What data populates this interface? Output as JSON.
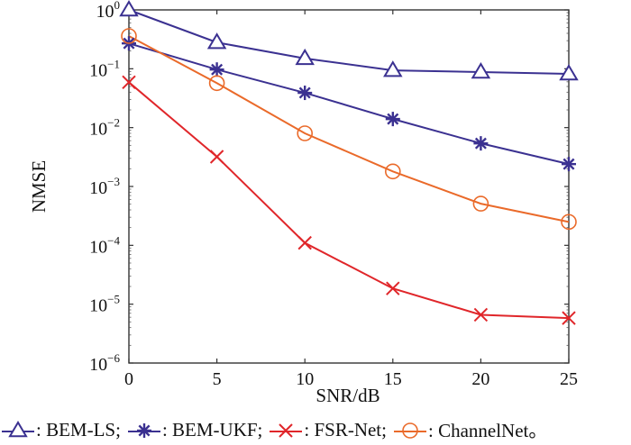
{
  "chart_data": {
    "type": "line",
    "title": "",
    "xlabel": "SNR/dB",
    "ylabel": "NMSE",
    "yscale": "log",
    "x": [
      0,
      5,
      10,
      15,
      20,
      25
    ],
    "xlim": [
      0,
      25
    ],
    "ylim": [
      1e-06,
      1
    ],
    "xticks": [
      0,
      5,
      10,
      15,
      20,
      25
    ],
    "xtick_labels": [
      "0",
      "5",
      "10",
      "15",
      "20",
      "25"
    ],
    "yticks_exp": [
      0,
      -1,
      -2,
      -3,
      -4,
      -5,
      -6
    ],
    "ytick_base": "10",
    "grid": false,
    "legend_position": "bottom",
    "series": [
      {
        "name": "BEM-LS",
        "legend_label": ": BEM-LS;",
        "marker": "triangle",
        "color": "#3b3191",
        "values": [
          1.0,
          0.28,
          0.15,
          0.094,
          0.088,
          0.082
        ]
      },
      {
        "name": "BEM-UKF",
        "legend_label": ": BEM-UKF;",
        "marker": "star",
        "color": "#3b3191",
        "values": [
          0.27,
          0.097,
          0.039,
          0.014,
          0.0054,
          0.0024
        ]
      },
      {
        "name": "FSR-Net",
        "legend_label": ": FSR-Net;",
        "marker": "x",
        "color": "#e0262a",
        "values": [
          0.059,
          0.0032,
          0.00011,
          1.85e-05,
          6.6e-06,
          5.8e-06
        ]
      },
      {
        "name": "ChannelNet",
        "legend_label": ": ChannelNet。",
        "marker": "circle",
        "color": "#ea6a2a",
        "values": [
          0.36,
          0.057,
          0.008,
          0.0018,
          0.00051,
          0.00025
        ]
      }
    ]
  }
}
